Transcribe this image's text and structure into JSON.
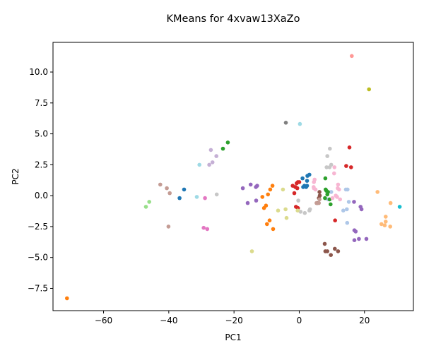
{
  "chart_data": {
    "type": "scatter",
    "title": "KMeans for 4xvaw13XaZo",
    "xlabel": "PC1",
    "ylabel": "PC2",
    "xlim": [
      -75.5,
      35
    ],
    "ylim": [
      -9.3,
      12.4
    ],
    "xticks": [
      -60,
      -40,
      -20,
      0,
      20
    ],
    "yticks": [
      -7.5,
      -5.0,
      -2.5,
      0.0,
      2.5,
      5.0,
      7.5,
      10.0
    ],
    "xtick_labels": [
      "−60",
      "−40",
      "−20",
      "0",
      "20"
    ],
    "ytick_labels": [
      "−7.5",
      "−5.0",
      "−2.5",
      "0.0",
      "2.5",
      "5.0",
      "7.5",
      "10.0"
    ],
    "grid": false,
    "clusters": [
      {
        "color": "#1f77b4",
        "points": [
          [
            -35.3,
            0.5
          ],
          [
            -36.7,
            -0.2
          ],
          [
            1,
            1.4
          ],
          [
            2.5,
            1.6
          ],
          [
            3.1,
            1.7
          ],
          [
            2.4,
            1.2
          ],
          [
            1.6,
            0.8
          ],
          [
            2.1,
            0.7
          ],
          [
            1.2,
            0.7
          ],
          [
            2.4,
            0.8
          ]
        ]
      },
      {
        "color": "#aec7e8",
        "points": [
          [
            8.8,
            -0.3
          ],
          [
            9.8,
            0.3
          ],
          [
            14.3,
            0.5
          ],
          [
            14.8,
            0.5
          ],
          [
            13.5,
            -1.2
          ],
          [
            14.6,
            -1.1
          ],
          [
            14.7,
            -2.2
          ],
          [
            15.2,
            -0.5
          ]
        ]
      },
      {
        "color": "#ff7f0e",
        "points": [
          [
            -71.2,
            -8.3
          ],
          [
            -11.3,
            -0.1
          ],
          [
            -10.2,
            -0.8
          ],
          [
            -10.8,
            -1.0
          ],
          [
            -9.9,
            -2.3
          ],
          [
            -9.1,
            -2.0
          ],
          [
            -8.0,
            -2.7
          ],
          [
            -9.6,
            0.1
          ],
          [
            -8.9,
            0.5
          ],
          [
            -8.2,
            0.8
          ]
        ]
      },
      {
        "color": "#ffbb78",
        "points": [
          [
            26.5,
            -1.7
          ],
          [
            28.0,
            -0.6
          ],
          [
            25.2,
            -2.3
          ],
          [
            26.2,
            -2.4
          ],
          [
            26.5,
            -2.1
          ],
          [
            27.9,
            -2.5
          ],
          [
            24.0,
            0.3
          ]
        ]
      },
      {
        "color": "#2ca02c",
        "points": [
          [
            -21.9,
            4.3
          ],
          [
            -23.4,
            3.8
          ],
          [
            8.0,
            1.4
          ],
          [
            8.1,
            0.5
          ],
          [
            8.3,
            0.4
          ],
          [
            8.8,
            0.3
          ],
          [
            9.3,
            -0.3
          ],
          [
            9.6,
            -0.7
          ],
          [
            7.9,
            -0.2
          ],
          [
            8.6,
            0.1
          ]
        ]
      },
      {
        "color": "#98df8a",
        "points": [
          [
            -46.0,
            -0.5
          ],
          [
            -47.0,
            -0.9
          ]
        ]
      },
      {
        "color": "#d62728",
        "points": [
          [
            15.4,
            3.9
          ],
          [
            14.4,
            2.4
          ],
          [
            15.9,
            2.3
          ],
          [
            -0.4,
            1.1
          ],
          [
            -0.8,
            1.0
          ],
          [
            0.0,
            1.1
          ],
          [
            -1.2,
            0.7
          ],
          [
            -2.0,
            0.8
          ],
          [
            -1.5,
            0.2
          ],
          [
            -0.6,
            0.6
          ],
          [
            -1.0,
            -0.9
          ],
          [
            -0.4,
            -1.0
          ],
          [
            11.0,
            -2.0
          ]
        ]
      },
      {
        "color": "#ff9896",
        "points": [
          [
            16.1,
            11.3
          ]
        ]
      },
      {
        "color": "#9467bd",
        "points": [
          [
            -14.9,
            0.9
          ],
          [
            -13.3,
            0.7
          ],
          [
            -12.9,
            0.8
          ],
          [
            -17.3,
            0.6
          ],
          [
            -15.8,
            -0.6
          ],
          [
            -13.2,
            -0.4
          ],
          [
            16.8,
            -0.5
          ],
          [
            16.9,
            -2.8
          ],
          [
            17.3,
            -2.9
          ],
          [
            16.9,
            -3.6
          ],
          [
            18.3,
            -3.5
          ],
          [
            20.6,
            -3.5
          ],
          [
            18.8,
            -0.9
          ],
          [
            19.1,
            -1.1
          ]
        ]
      },
      {
        "color": "#c5b0d5",
        "points": [
          [
            -27.1,
            3.7
          ],
          [
            -25.4,
            3.2
          ],
          [
            -26.6,
            2.7
          ],
          [
            -27.6,
            2.5
          ]
        ]
      },
      {
        "color": "#8c564b",
        "points": [
          [
            7.8,
            -3.9
          ],
          [
            8.0,
            -4.5
          ],
          [
            8.6,
            -4.5
          ],
          [
            9.7,
            -4.8
          ],
          [
            10.9,
            -4.3
          ],
          [
            11.9,
            -4.5
          ],
          [
            6.2,
            0.3
          ],
          [
            6.3,
            0.0
          ],
          [
            5.5,
            -0.6
          ],
          [
            6.0,
            -0.2
          ]
        ]
      },
      {
        "color": "#c49c94",
        "points": [
          [
            -42.6,
            0.9
          ],
          [
            -40.6,
            0.6
          ],
          [
            -39.7,
            0.2
          ],
          [
            -40.1,
            -2.5
          ],
          [
            6.2,
            -0.3
          ],
          [
            6.0,
            -0.6
          ],
          [
            5.3,
            -0.6
          ]
        ]
      },
      {
        "color": "#e377c2",
        "points": [
          [
            -28.9,
            -0.2
          ],
          [
            -29.3,
            -2.6
          ],
          [
            -28.2,
            -2.7
          ]
        ]
      },
      {
        "color": "#f7b6d2",
        "points": [
          [
            4.4,
            0.7
          ],
          [
            4.5,
            1.1
          ],
          [
            4.7,
            1.3
          ],
          [
            4.5,
            0.6
          ],
          [
            5.0,
            0.5
          ],
          [
            10.8,
            2.3
          ],
          [
            10.7,
            1.8
          ],
          [
            11.9,
            0.9
          ],
          [
            11.8,
            0.6
          ],
          [
            12.2,
            0.5
          ],
          [
            10.2,
            -0.2
          ],
          [
            11.2,
            0.0
          ],
          [
            12.5,
            -0.3
          ],
          [
            11.6,
            -0.1
          ]
        ]
      },
      {
        "color": "#7f7f7f",
        "points": [
          [
            -4.1,
            5.9
          ]
        ]
      },
      {
        "color": "#c7c7c7",
        "points": [
          [
            -0.3,
            -0.4
          ],
          [
            0.4,
            -1.3
          ],
          [
            1.7,
            -1.4
          ],
          [
            3.1,
            -1.2
          ],
          [
            3.3,
            -1.1
          ],
          [
            8.6,
            3.2
          ],
          [
            8.4,
            2.3
          ],
          [
            9.3,
            2.3
          ],
          [
            9.4,
            3.8
          ],
          [
            9.8,
            2.5
          ],
          [
            -25.3,
            0.1
          ]
        ]
      },
      {
        "color": "#bcbd22",
        "points": [
          [
            21.4,
            8.6
          ]
        ]
      },
      {
        "color": "#dbdb8d",
        "points": [
          [
            -14.5,
            -4.5
          ],
          [
            -6.5,
            -1.2
          ],
          [
            -5.0,
            0.5
          ],
          [
            -3.9,
            -1.8
          ],
          [
            -4.2,
            -1.1
          ],
          [
            -0.5,
            -1.2
          ]
        ]
      },
      {
        "color": "#17becf",
        "points": [
          [
            30.8,
            -0.9
          ]
        ]
      },
      {
        "color": "#9edae5",
        "points": [
          [
            0.2,
            5.8
          ],
          [
            -30.6,
            2.5
          ],
          [
            -31.4,
            -0.1
          ]
        ]
      }
    ]
  }
}
